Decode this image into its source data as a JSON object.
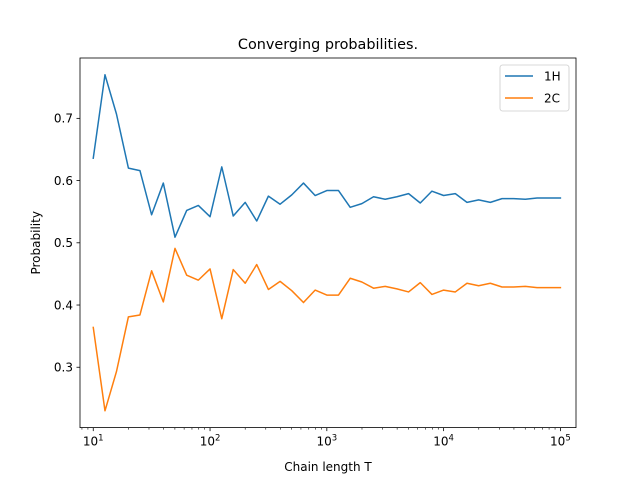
{
  "chart_data": {
    "type": "line",
    "title": "Converging probabilities.",
    "xlabel": "Chain length T",
    "ylabel": "Probability",
    "xscale": "log",
    "xlim": [
      7.7,
      136000
    ],
    "ylim": [
      0.203,
      0.797
    ],
    "grid": false,
    "legend_position": "top-right",
    "x_ticks": [
      {
        "value": 10,
        "base": "10",
        "exp": "1"
      },
      {
        "value": 100,
        "base": "10",
        "exp": "2"
      },
      {
        "value": 1000,
        "base": "10",
        "exp": "3"
      },
      {
        "value": 10000,
        "base": "10",
        "exp": "4"
      },
      {
        "value": 100000,
        "base": "10",
        "exp": "5"
      }
    ],
    "y_ticks": [
      {
        "value": 0.3,
        "label": "0.3"
      },
      {
        "value": 0.4,
        "label": "0.4"
      },
      {
        "value": 0.5,
        "label": "0.5"
      },
      {
        "value": 0.6,
        "label": "0.6"
      },
      {
        "value": 0.7,
        "label": "0.7"
      }
    ],
    "x": [
      10,
      12.6,
      15.8,
      20,
      25.1,
      31.6,
      39.8,
      50.1,
      63.1,
      79.4,
      100,
      126,
      158,
      200,
      251,
      316,
      398,
      501,
      631,
      794,
      1000,
      1259,
      1585,
      1995,
      2512,
      3162,
      3981,
      5012,
      6310,
      7943,
      10000,
      12589,
      15849,
      19953,
      25119,
      31623,
      39811,
      50119,
      63096,
      79433,
      100000
    ],
    "series": [
      {
        "name": "1H",
        "color": "#1f77b4",
        "values": [
          0.636,
          0.77,
          0.707,
          0.62,
          0.616,
          0.545,
          0.596,
          0.509,
          0.552,
          0.56,
          0.542,
          0.622,
          0.543,
          0.565,
          0.535,
          0.575,
          0.562,
          0.577,
          0.596,
          0.576,
          0.584,
          0.584,
          0.557,
          0.563,
          0.574,
          0.57,
          0.574,
          0.579,
          0.564,
          0.583,
          0.576,
          0.579,
          0.565,
          0.569,
          0.565,
          0.571,
          0.571,
          0.57,
          0.572,
          0.572,
          0.572
        ]
      },
      {
        "name": "2C",
        "color": "#ff7f0e",
        "values": [
          0.364,
          0.23,
          0.293,
          0.381,
          0.384,
          0.455,
          0.405,
          0.491,
          0.448,
          0.44,
          0.458,
          0.378,
          0.457,
          0.435,
          0.465,
          0.425,
          0.438,
          0.423,
          0.404,
          0.424,
          0.416,
          0.416,
          0.443,
          0.437,
          0.427,
          0.43,
          0.426,
          0.421,
          0.436,
          0.417,
          0.424,
          0.421,
          0.435,
          0.431,
          0.435,
          0.429,
          0.429,
          0.43,
          0.428,
          0.428,
          0.428
        ]
      }
    ]
  }
}
